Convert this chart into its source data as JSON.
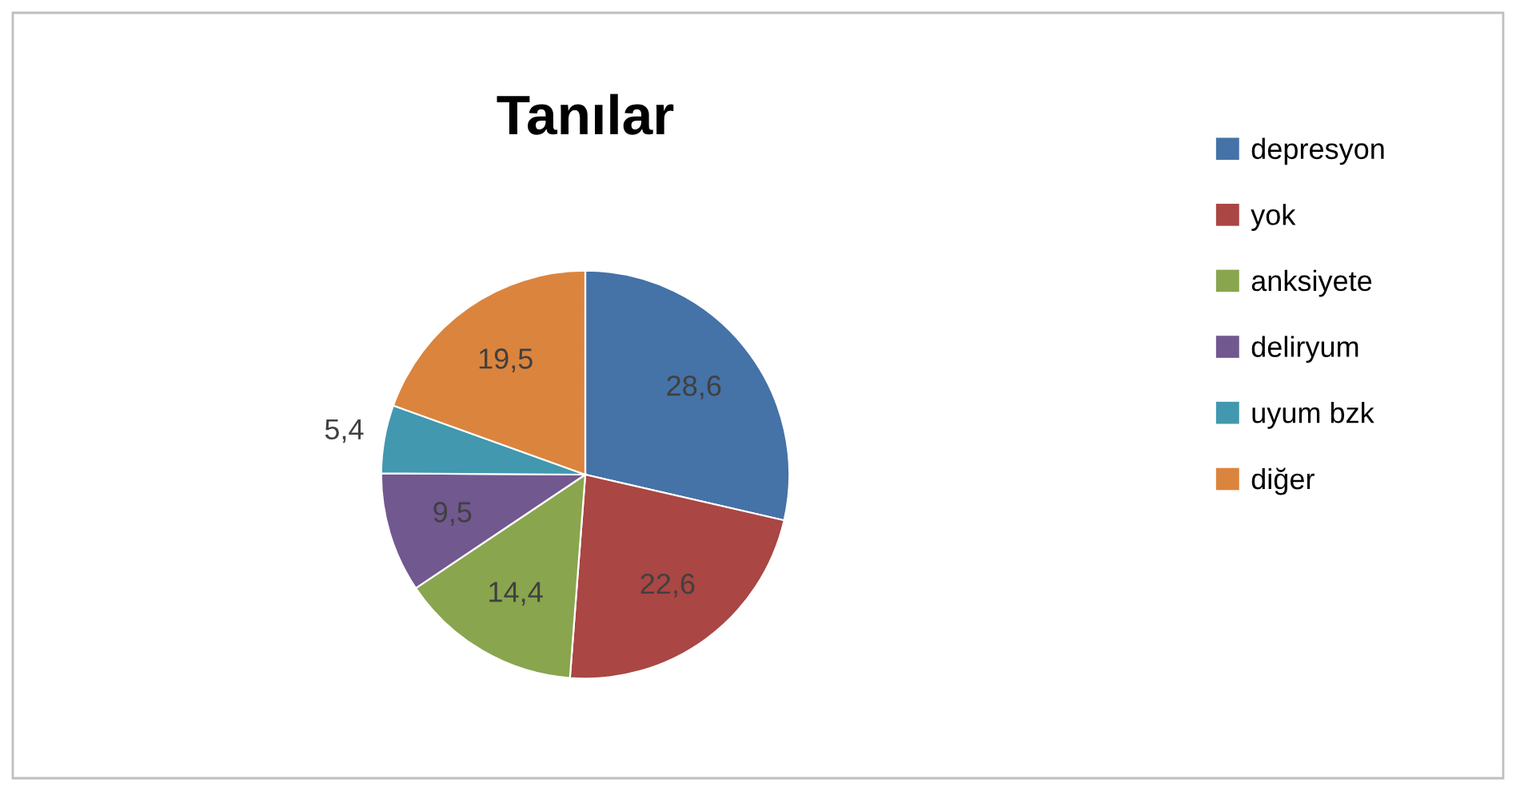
{
  "chart_data": {
    "type": "pie",
    "title": "Tanılar",
    "categories": [
      "depresyon",
      "yok",
      "anksiyete",
      "deliryum",
      "uyum bzk",
      "diğer"
    ],
    "values": [
      28.6,
      22.6,
      14.4,
      9.5,
      5.4,
      19.5
    ],
    "colors": [
      "#4572a7",
      "#aa4643",
      "#89a54e",
      "#71588f",
      "#4198af",
      "#db843d"
    ],
    "value_labels": [
      "28,6",
      "22,6",
      "14,4",
      "9,5",
      "5,4",
      "19,5"
    ],
    "legend": "right"
  }
}
